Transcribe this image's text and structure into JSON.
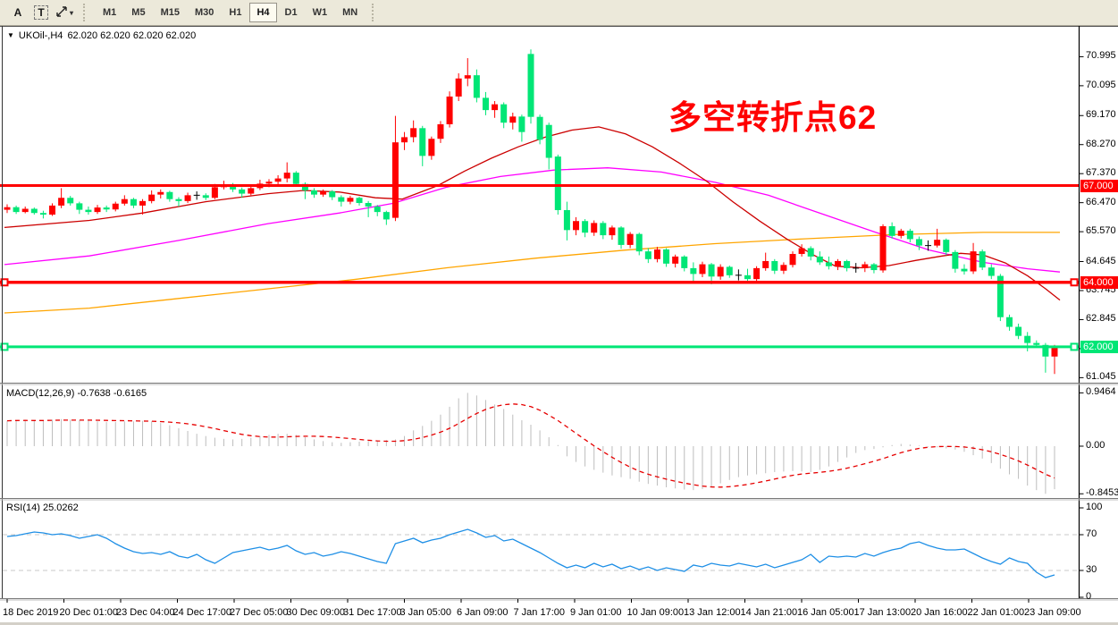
{
  "toolbar": {
    "annotate_label": "A",
    "text_label": "T",
    "timeframes": [
      "M1",
      "M5",
      "M15",
      "M30",
      "H1",
      "H4",
      "D1",
      "W1",
      "MN"
    ],
    "active_timeframe": "H4"
  },
  "annotation": {
    "text": "多空转折点62",
    "color": "#ff0000"
  },
  "chart_data": {
    "type": "candlestick",
    "symbol_period": "UKOil-,H4",
    "ohlc_display": "62.020 62.020 62.020 62.020",
    "up_color": "#ff0000",
    "down_color": "#00e676",
    "doji_color": "#000000",
    "ylim": [
      61.0,
      71.45
    ],
    "price_ticks": [
      70.995,
      70.095,
      69.17,
      68.27,
      67.37,
      66.47,
      65.57,
      64.645,
      63.745,
      62.845,
      61.945,
      61.045
    ],
    "hlines": [
      {
        "price": 67.0,
        "label": "67.000",
        "color": "#ff0000",
        "width": 3,
        "handles": false
      },
      {
        "price": 64.0,
        "label": "64.000",
        "color": "#ff0000",
        "width": 3.5,
        "handles": true
      },
      {
        "price": 62.0,
        "label": "62.000",
        "color": "#00e676",
        "width": 3,
        "handles": true
      }
    ],
    "moving_averages": [
      {
        "name": "slow-orange",
        "color": "#ffa500",
        "points": [
          [
            5,
            63.05
          ],
          [
            100,
            63.2
          ],
          [
            200,
            63.5
          ],
          [
            300,
            63.8
          ],
          [
            400,
            64.1
          ],
          [
            500,
            64.45
          ],
          [
            600,
            64.75
          ],
          [
            700,
            65.0
          ],
          [
            800,
            65.2
          ],
          [
            900,
            65.35
          ],
          [
            1000,
            65.48
          ],
          [
            1100,
            65.55
          ],
          [
            1186,
            65.55
          ]
        ]
      },
      {
        "name": "mid-magenta",
        "color": "#ff00ff",
        "points": [
          [
            5,
            64.55
          ],
          [
            100,
            64.82
          ],
          [
            200,
            65.3
          ],
          [
            300,
            65.82
          ],
          [
            380,
            66.15
          ],
          [
            440,
            66.45
          ],
          [
            500,
            66.95
          ],
          [
            560,
            67.28
          ],
          [
            620,
            67.48
          ],
          [
            680,
            67.55
          ],
          [
            740,
            67.42
          ],
          [
            800,
            67.1
          ],
          [
            860,
            66.7
          ],
          [
            920,
            66.12
          ],
          [
            980,
            65.55
          ],
          [
            1040,
            65.0
          ],
          [
            1100,
            64.62
          ],
          [
            1150,
            64.42
          ],
          [
            1186,
            64.32
          ]
        ]
      },
      {
        "name": "fast-red",
        "color": "#cc0000",
        "points": [
          [
            5,
            65.7
          ],
          [
            100,
            65.92
          ],
          [
            160,
            66.15
          ],
          [
            230,
            66.5
          ],
          [
            300,
            66.75
          ],
          [
            340,
            66.85
          ],
          [
            380,
            66.8
          ],
          [
            420,
            66.62
          ],
          [
            450,
            66.58
          ],
          [
            490,
            67.0
          ],
          [
            520,
            67.45
          ],
          [
            550,
            67.85
          ],
          [
            580,
            68.2
          ],
          [
            610,
            68.5
          ],
          [
            640,
            68.72
          ],
          [
            670,
            68.82
          ],
          [
            700,
            68.6
          ],
          [
            730,
            68.2
          ],
          [
            760,
            67.7
          ],
          [
            790,
            67.15
          ],
          [
            820,
            66.5
          ],
          [
            850,
            65.9
          ],
          [
            880,
            65.35
          ],
          [
            910,
            64.85
          ],
          [
            935,
            64.5
          ],
          [
            965,
            64.45
          ],
          [
            995,
            64.52
          ],
          [
            1025,
            64.68
          ],
          [
            1055,
            64.82
          ],
          [
            1075,
            64.9
          ],
          [
            1100,
            64.85
          ],
          [
            1125,
            64.6
          ],
          [
            1150,
            64.2
          ],
          [
            1170,
            63.8
          ],
          [
            1186,
            63.45
          ]
        ]
      }
    ],
    "candles": [
      [
        66.25,
        66.42,
        66.15,
        66.33
      ],
      [
        66.33,
        66.38,
        66.12,
        66.18
      ],
      [
        66.18,
        66.35,
        66.14,
        66.28
      ],
      [
        66.28,
        66.32,
        66.1,
        66.15
      ],
      [
        66.15,
        66.22,
        65.98,
        66.1
      ],
      [
        66.1,
        66.45,
        66.06,
        66.38
      ],
      [
        66.38,
        66.92,
        66.3,
        66.62
      ],
      [
        66.62,
        66.68,
        66.38,
        66.45
      ],
      [
        66.45,
        66.5,
        66.12,
        66.25
      ],
      [
        66.25,
        66.35,
        66.1,
        66.18
      ],
      [
        66.18,
        66.4,
        66.12,
        66.32
      ],
      [
        66.32,
        66.38,
        66.18,
        66.26
      ],
      [
        66.26,
        66.5,
        66.2,
        66.44
      ],
      [
        66.44,
        66.7,
        66.38,
        66.58
      ],
      [
        66.58,
        66.62,
        66.3,
        66.38
      ],
      [
        66.38,
        66.58,
        66.1,
        66.52
      ],
      [
        66.52,
        66.85,
        66.45,
        66.72
      ],
      [
        66.72,
        66.88,
        66.6,
        66.8
      ],
      [
        66.8,
        66.84,
        66.5,
        66.58
      ],
      [
        66.58,
        66.64,
        66.35,
        66.52
      ],
      [
        66.52,
        66.78,
        66.46,
        66.7
      ],
      [
        66.7,
        66.82,
        66.56,
        66.7
      ],
      [
        66.7,
        66.76,
        66.55,
        66.62
      ],
      [
        66.62,
        67.05,
        66.58,
        66.95
      ],
      [
        66.95,
        67.15,
        66.88,
        67.04
      ],
      [
        67.04,
        67.08,
        66.8,
        66.88
      ],
      [
        66.88,
        66.94,
        66.62,
        66.75
      ],
      [
        66.75,
        66.98,
        66.7,
        66.92
      ],
      [
        66.92,
        67.18,
        66.86,
        67.06
      ],
      [
        67.06,
        67.2,
        66.95,
        67.12
      ],
      [
        67.12,
        67.32,
        67.02,
        67.22
      ],
      [
        67.22,
        67.72,
        67.1,
        67.4
      ],
      [
        67.4,
        67.45,
        66.98,
        67.05
      ],
      [
        67.05,
        67.1,
        66.58,
        66.85
      ],
      [
        66.85,
        66.92,
        66.62,
        66.72
      ],
      [
        66.72,
        66.88,
        66.65,
        66.82
      ],
      [
        66.82,
        66.86,
        66.55,
        66.64
      ],
      [
        66.64,
        66.7,
        66.35,
        66.5
      ],
      [
        66.5,
        66.68,
        66.42,
        66.62
      ],
      [
        66.62,
        66.66,
        66.38,
        66.46
      ],
      [
        66.46,
        66.52,
        66.02,
        66.35
      ],
      [
        66.35,
        66.4,
        66.05,
        66.18
      ],
      [
        66.18,
        66.22,
        65.78,
        65.95
      ],
      [
        66.0,
        69.16,
        65.9,
        68.34
      ],
      [
        68.34,
        68.66,
        68.1,
        68.5
      ],
      [
        68.5,
        69.02,
        68.34,
        68.78
      ],
      [
        68.78,
        68.85,
        67.6,
        67.92
      ],
      [
        67.92,
        68.52,
        67.8,
        68.45
      ],
      [
        68.45,
        69.0,
        68.32,
        68.9
      ],
      [
        68.9,
        69.92,
        68.8,
        69.76
      ],
      [
        69.76,
        70.48,
        69.62,
        70.32
      ],
      [
        70.32,
        70.95,
        70.08,
        70.42
      ],
      [
        70.42,
        70.6,
        69.58,
        69.72
      ],
      [
        69.72,
        69.9,
        69.18,
        69.34
      ],
      [
        69.34,
        69.62,
        69.1,
        69.52
      ],
      [
        69.52,
        69.58,
        68.78,
        68.95
      ],
      [
        68.95,
        69.26,
        68.74,
        69.14
      ],
      [
        69.14,
        69.2,
        68.36,
        68.66
      ],
      [
        71.08,
        71.22,
        68.92,
        69.13
      ],
      [
        69.13,
        69.2,
        68.28,
        68.42
      ],
      [
        68.88,
        68.95,
        67.5,
        67.86
      ],
      [
        67.9,
        67.96,
        66.1,
        66.24
      ],
      [
        66.24,
        66.5,
        65.3,
        65.62
      ],
      [
        65.62,
        66.02,
        65.46,
        65.9
      ],
      [
        65.9,
        65.96,
        65.4,
        65.54
      ],
      [
        65.54,
        65.92,
        65.44,
        65.84
      ],
      [
        65.84,
        65.9,
        65.34,
        65.46
      ],
      [
        65.46,
        65.76,
        65.32,
        65.7
      ],
      [
        65.7,
        65.74,
        65.04,
        65.16
      ],
      [
        65.16,
        65.56,
        65.06,
        65.5
      ],
      [
        65.5,
        65.54,
        64.84,
        64.96
      ],
      [
        64.96,
        65.06,
        64.6,
        64.72
      ],
      [
        64.72,
        65.1,
        64.62,
        65.02
      ],
      [
        65.02,
        65.06,
        64.48,
        64.58
      ],
      [
        64.58,
        64.86,
        64.46,
        64.8
      ],
      [
        64.8,
        64.84,
        64.34,
        64.44
      ],
      [
        64.44,
        64.62,
        64.0,
        64.26
      ],
      [
        64.26,
        64.64,
        64.16,
        64.56
      ],
      [
        64.56,
        64.6,
        63.94,
        64.18
      ],
      [
        64.18,
        64.56,
        64.08,
        64.48
      ],
      [
        64.48,
        64.52,
        64.14,
        64.22
      ],
      [
        64.22,
        64.4,
        64.06,
        64.22
      ],
      [
        64.22,
        64.42,
        63.98,
        64.1
      ],
      [
        64.1,
        64.5,
        64.02,
        64.44
      ],
      [
        64.44,
        64.92,
        64.36,
        64.66
      ],
      [
        64.66,
        64.72,
        64.26,
        64.36
      ],
      [
        64.36,
        64.62,
        64.26,
        64.54
      ],
      [
        64.54,
        64.96,
        64.46,
        64.88
      ],
      [
        64.88,
        65.18,
        64.8,
        65.06
      ],
      [
        65.06,
        65.12,
        64.68,
        64.8
      ],
      [
        64.8,
        64.96,
        64.54,
        64.62
      ],
      [
        64.62,
        64.8,
        64.4,
        64.5
      ],
      [
        64.5,
        64.72,
        64.38,
        64.66
      ],
      [
        64.66,
        64.7,
        64.34,
        64.44
      ],
      [
        64.44,
        64.6,
        64.3,
        64.44
      ],
      [
        64.44,
        64.64,
        64.32,
        64.56
      ],
      [
        64.56,
        64.6,
        64.28,
        64.38
      ],
      [
        64.37,
        65.8,
        64.3,
        65.74
      ],
      [
        65.74,
        65.86,
        65.36,
        65.44
      ],
      [
        65.44,
        65.66,
        65.36,
        65.6
      ],
      [
        65.6,
        65.66,
        65.24,
        65.34
      ],
      [
        65.34,
        65.42,
        65.0,
        65.14
      ],
      [
        65.14,
        65.3,
        64.98,
        65.14
      ],
      [
        65.14,
        65.66,
        65.08,
        65.32
      ],
      [
        65.32,
        65.36,
        64.84,
        64.94
      ],
      [
        64.94,
        65.0,
        64.3,
        64.42
      ],
      [
        64.42,
        64.56,
        64.24,
        64.34
      ],
      [
        64.34,
        65.22,
        64.26,
        64.96
      ],
      [
        64.96,
        65.02,
        64.38,
        64.46
      ],
      [
        64.46,
        64.56,
        64.1,
        64.2
      ],
      [
        64.2,
        64.26,
        62.8,
        62.92
      ],
      [
        62.92,
        63.0,
        62.5,
        62.62
      ],
      [
        62.62,
        62.72,
        62.24,
        62.34
      ],
      [
        62.34,
        62.46,
        61.86,
        62.12
      ],
      [
        62.12,
        62.2,
        61.98,
        62.06
      ],
      [
        62.06,
        62.12,
        61.2,
        61.7
      ],
      [
        61.7,
        62.06,
        61.16,
        62.02
      ]
    ],
    "macd": {
      "label": "MACD(12,26,9)",
      "value_text": "-0.7638 -0.6165",
      "ticks": [
        "0.9464",
        "0.00",
        "-0.8453"
      ],
      "tick_values": [
        0.9464,
        0,
        -0.8453
      ],
      "bar_color": "#bdbdbd",
      "signal_color": "#e60000",
      "signal_period": 9,
      "values": [
        0.45,
        0.46,
        0.46,
        0.45,
        0.46,
        0.47,
        0.48,
        0.47,
        0.46,
        0.45,
        0.44,
        0.43,
        0.43,
        0.44,
        0.44,
        0.45,
        0.44,
        0.41,
        0.37,
        0.32,
        0.27,
        0.22,
        0.18,
        0.15,
        0.13,
        0.12,
        0.13,
        0.15,
        0.18,
        0.2,
        0.22,
        0.22,
        0.2,
        0.16,
        0.12,
        0.09,
        0.07,
        0.06,
        0.07,
        0.08,
        0.09,
        0.1,
        0.11,
        0.12,
        0.18,
        0.28,
        0.36,
        0.45,
        0.56,
        0.7,
        0.85,
        0.9464,
        0.9,
        0.82,
        0.74,
        0.66,
        0.56,
        0.46,
        0.38,
        0.28,
        0.16,
        0.02,
        -0.18,
        -0.28,
        -0.36,
        -0.42,
        -0.47,
        -0.52,
        -0.55,
        -0.58,
        -0.63,
        -0.67,
        -0.7,
        -0.73,
        -0.75,
        -0.77,
        -0.78,
        -0.76,
        -0.72,
        -0.66,
        -0.6,
        -0.55,
        -0.52,
        -0.5,
        -0.48,
        -0.46,
        -0.45,
        -0.44,
        -0.45,
        -0.46,
        -0.42,
        -0.36,
        -0.28,
        -0.2,
        -0.12,
        -0.07,
        -0.05,
        -0.02,
        0.02,
        0.04,
        0.03,
        0.01,
        -0.01,
        -0.02,
        -0.04,
        -0.06,
        -0.1,
        -0.16,
        -0.22,
        -0.3,
        -0.4,
        -0.5,
        -0.58,
        -0.7,
        -0.78,
        -0.8453,
        -0.7638
      ]
    },
    "rsi": {
      "label": "RSI(14)",
      "value_text": "25.0262",
      "ticks": [
        "100",
        "70",
        "30",
        "0"
      ],
      "tick_values": [
        100,
        70,
        30,
        0
      ],
      "levels": [
        70,
        30
      ],
      "color": "#1e8fe6",
      "values": [
        68,
        69,
        71,
        73,
        72,
        70,
        71,
        69,
        66,
        68,
        70,
        66,
        60,
        55,
        51,
        49,
        50,
        48,
        51,
        46,
        44,
        48,
        42,
        38,
        44,
        50,
        52,
        54,
        56,
        53,
        55,
        58,
        52,
        48,
        50,
        46,
        48,
        51,
        49,
        46,
        43,
        40,
        38,
        60,
        63,
        66,
        61,
        64,
        66,
        70,
        73,
        76,
        72,
        67,
        69,
        63,
        65,
        60,
        55,
        50,
        44,
        38,
        33,
        36,
        33,
        38,
        34,
        37,
        32,
        35,
        31,
        34,
        30,
        33,
        31,
        29,
        36,
        34,
        38,
        36,
        35,
        38,
        36,
        34,
        37,
        33,
        36,
        39,
        42,
        48,
        39,
        46,
        45,
        46,
        45,
        49,
        46,
        50,
        53,
        55,
        60,
        62,
        58,
        55,
        53,
        53,
        54,
        49,
        44,
        40,
        37,
        44,
        40,
        38,
        28,
        22,
        25.03
      ]
    },
    "time_labels": [
      "18 Dec 2019",
      "20 Dec 01:00",
      "23 Dec 04:00",
      "24 Dec 17:00",
      "27 Dec 05:00",
      "30 Dec 09:00",
      "31 Dec 17:00",
      "3 Jan 05:00",
      "6 Jan 09:00",
      "7 Jan 17:00",
      "9 Jan 01:00",
      "10 Jan 09:00",
      "13 Jan 12:00",
      "14 Jan 21:00",
      "16 Jan 05:00",
      "17 Jan 13:00",
      "20 Jan 16:00",
      "22 Jan 01:00",
      "23 Jan 09:00"
    ]
  }
}
